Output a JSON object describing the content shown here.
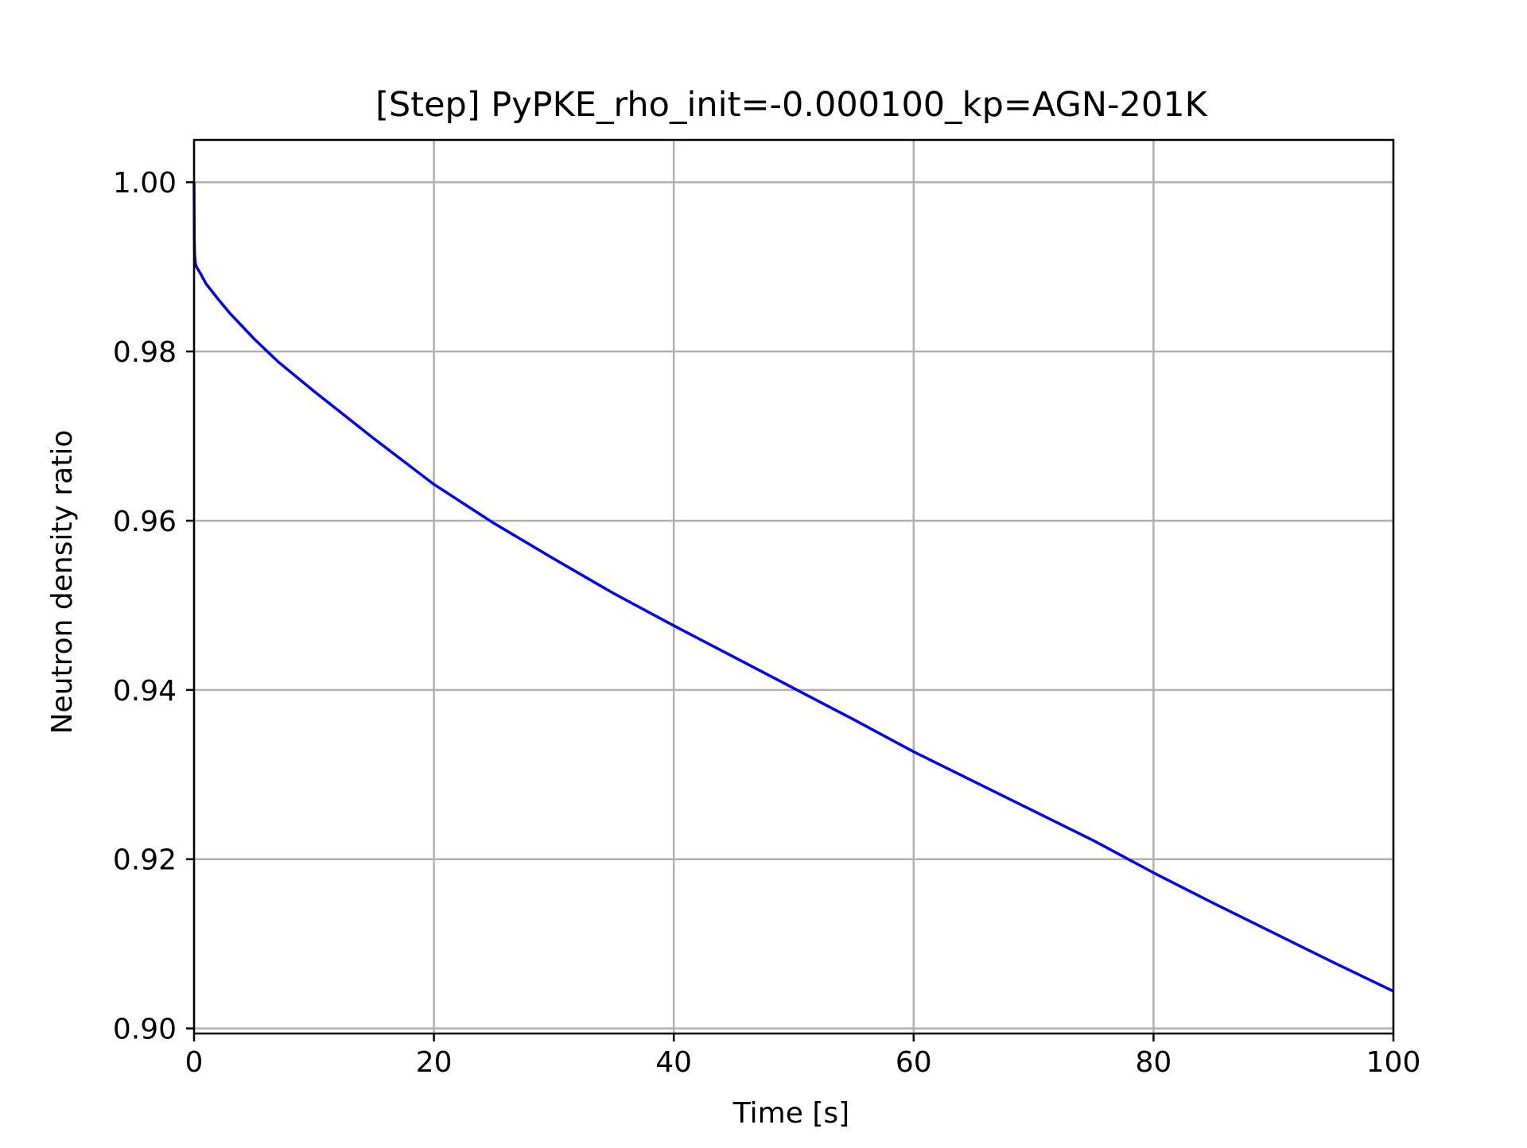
{
  "chart_data": {
    "type": "line",
    "title": "[Step] PyPKE_rho_init=-0.000100_kp=AGN-201K",
    "xlabel": "Time [s]",
    "ylabel": "Neutron density ratio",
    "xlim": [
      0,
      100
    ],
    "ylim": [
      0.8994,
      1.005
    ],
    "xticks": [
      0,
      20,
      40,
      60,
      80,
      100
    ],
    "xtick_labels": [
      "0",
      "20",
      "40",
      "60",
      "80",
      "100"
    ],
    "yticks": [
      0.9,
      0.92,
      0.94,
      0.96,
      0.98,
      1.0
    ],
    "ytick_labels": [
      "0.90",
      "0.92",
      "0.94",
      "0.96",
      "0.98",
      "1.00"
    ],
    "grid": true,
    "legend": "none",
    "colors": {
      "line": "#0000ff",
      "grid": "#b0b0b0",
      "axes": "#000000"
    },
    "series": [
      {
        "x": [
          0,
          0.02,
          0.05,
          0.1,
          0.2,
          0.5,
          1,
          2,
          3,
          5,
          7,
          10,
          15,
          20,
          25,
          30,
          35,
          40,
          45,
          50,
          55,
          60,
          65,
          70,
          75,
          80,
          85,
          90,
          95,
          100
        ],
        "values": [
          1.0,
          0.9935,
          0.9915,
          0.9905,
          0.99,
          0.9893,
          0.988,
          0.9862,
          0.9845,
          0.9815,
          0.9788,
          0.9753,
          0.9697,
          0.9643,
          0.9597,
          0.9555,
          0.9514,
          0.9476,
          0.9439,
          0.9402,
          0.9365,
          0.9327,
          0.9292,
          0.9257,
          0.9222,
          0.9184,
          0.9148,
          0.9113,
          0.9078,
          0.9044
        ]
      }
    ]
  }
}
